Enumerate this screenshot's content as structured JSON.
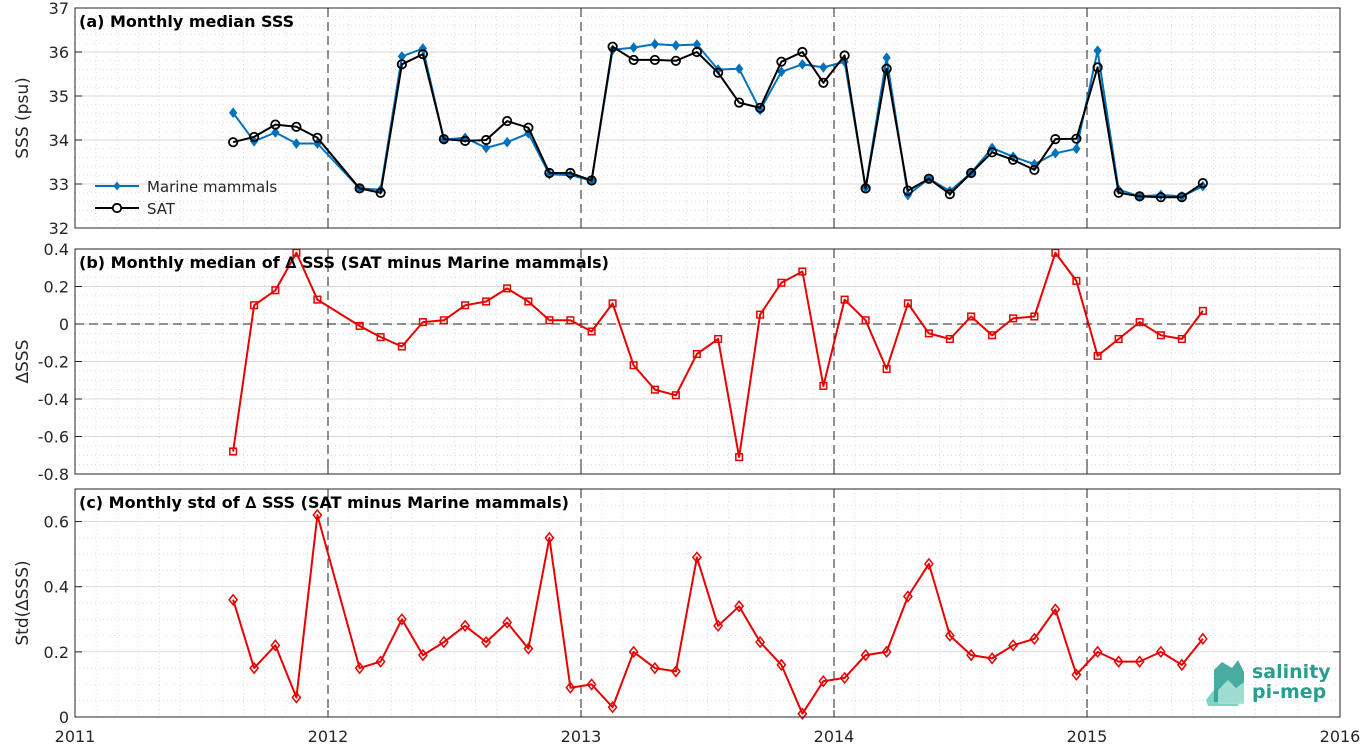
{
  "colors": {
    "marine": "#0072BD",
    "sat": "#000000",
    "delta": "#E80000",
    "logo": "#2a9d8f"
  },
  "logo": {
    "line1": "salinity",
    "line2": "pi-mep"
  },
  "chart_data": [
    {
      "type": "line",
      "title": "(a) Monthly median SSS",
      "ylabel": "SSS (psu)",
      "xlim": [
        2011,
        2016
      ],
      "ylim": [
        32,
        37
      ],
      "yticks": [
        32,
        33,
        34,
        35,
        36,
        37
      ],
      "grid": true,
      "legend_position": "bottom-left",
      "x": [
        2011.625,
        2011.708,
        2011.792,
        2011.875,
        2011.958,
        2012.125,
        2012.208,
        2012.292,
        2012.375,
        2012.458,
        2012.542,
        2012.625,
        2012.708,
        2012.792,
        2012.875,
        2012.958,
        2013.042,
        2013.125,
        2013.208,
        2013.292,
        2013.375,
        2013.458,
        2013.542,
        2013.625,
        2013.708,
        2013.792,
        2013.875,
        2013.958,
        2014.042,
        2014.125,
        2014.208,
        2014.292,
        2014.375,
        2014.458,
        2014.542,
        2014.625,
        2014.708,
        2014.792,
        2014.875,
        2014.958,
        2015.042,
        2015.125,
        2015.208,
        2015.292,
        2015.375,
        2015.458
      ],
      "series": [
        {
          "name": "Marine mammals",
          "marker": "diamond-filled",
          "values": [
            34.62,
            33.97,
            34.17,
            33.92,
            33.92,
            32.9,
            32.87,
            35.9,
            36.08,
            34.01,
            34.05,
            33.82,
            33.95,
            34.15,
            33.22,
            33.2,
            33.08,
            36.05,
            36.1,
            36.18,
            36.15,
            36.17,
            35.6,
            35.62,
            34.68,
            35.55,
            35.72,
            35.65,
            35.78,
            32.92,
            35.87,
            32.75,
            33.12,
            32.84,
            33.25,
            33.82,
            33.62,
            33.45,
            33.7,
            33.8,
            36.03,
            32.87,
            32.72,
            32.75,
            32.72,
            32.95
          ]
        },
        {
          "name": "SAT",
          "marker": "circle-open",
          "values": [
            33.95,
            34.07,
            34.35,
            34.3,
            34.05,
            32.9,
            32.8,
            35.72,
            35.95,
            34.02,
            33.98,
            34.0,
            34.43,
            34.28,
            33.25,
            33.25,
            33.08,
            36.12,
            35.82,
            35.82,
            35.8,
            36.0,
            35.53,
            34.85,
            34.73,
            35.78,
            36.0,
            35.3,
            35.92,
            32.9,
            35.62,
            32.85,
            33.12,
            32.77,
            33.25,
            33.72,
            33.55,
            33.32,
            34.02,
            34.03,
            35.65,
            32.8,
            32.72,
            32.7,
            32.7,
            33.02
          ]
        }
      ]
    },
    {
      "type": "line",
      "title": "(b) Monthly median of ∆ SSS (SAT minus Marine mammals)",
      "ylabel": "∆SSS",
      "xlim": [
        2011,
        2016
      ],
      "ylim": [
        -0.8,
        0.4
      ],
      "yticks": [
        -0.8,
        -0.6,
        -0.4,
        -0.2,
        0,
        0.2,
        0.4
      ],
      "grid": true,
      "zero_line": true,
      "x": [
        2011.625,
        2011.708,
        2011.792,
        2011.875,
        2011.958,
        2012.125,
        2012.208,
        2012.292,
        2012.375,
        2012.458,
        2012.542,
        2012.625,
        2012.708,
        2012.792,
        2012.875,
        2012.958,
        2013.042,
        2013.125,
        2013.208,
        2013.292,
        2013.375,
        2013.458,
        2013.542,
        2013.625,
        2013.708,
        2013.792,
        2013.875,
        2013.958,
        2014.042,
        2014.125,
        2014.208,
        2014.292,
        2014.375,
        2014.458,
        2014.542,
        2014.625,
        2014.708,
        2014.792,
        2014.875,
        2014.958,
        2015.042,
        2015.125,
        2015.208,
        2015.292,
        2015.375,
        2015.458
      ],
      "series": [
        {
          "marker": "square-open",
          "values": [
            -0.68,
            0.1,
            0.18,
            0.38,
            0.13,
            -0.01,
            -0.07,
            -0.12,
            0.01,
            0.02,
            0.1,
            0.12,
            0.19,
            0.12,
            0.02,
            0.02,
            -0.04,
            0.11,
            -0.22,
            -0.35,
            -0.38,
            -0.16,
            -0.08,
            -0.71,
            0.05,
            0.22,
            0.28,
            -0.33,
            0.13,
            0.02,
            -0.24,
            0.11,
            -0.05,
            -0.08,
            0.04,
            -0.06,
            0.03,
            0.04,
            0.38,
            0.23,
            -0.17,
            -0.08,
            0.01,
            -0.06,
            -0.08,
            0.07
          ]
        }
      ]
    },
    {
      "type": "line",
      "title": "(c) Monthly std of ∆ SSS (SAT minus Marine mammals)",
      "ylabel": "Std(∆SSS)",
      "xlim": [
        2011,
        2016
      ],
      "ylim": [
        0,
        0.7
      ],
      "yticks": [
        0,
        0.2,
        0.4,
        0.6
      ],
      "xticks": [
        2011,
        2012,
        2013,
        2014,
        2015,
        2016
      ],
      "grid": true,
      "x": [
        2011.625,
        2011.708,
        2011.792,
        2011.875,
        2011.958,
        2012.125,
        2012.208,
        2012.292,
        2012.375,
        2012.458,
        2012.542,
        2012.625,
        2012.708,
        2012.792,
        2012.875,
        2012.958,
        2013.042,
        2013.125,
        2013.208,
        2013.292,
        2013.375,
        2013.458,
        2013.542,
        2013.625,
        2013.708,
        2013.792,
        2013.875,
        2013.958,
        2014.042,
        2014.125,
        2014.208,
        2014.292,
        2014.375,
        2014.458,
        2014.542,
        2014.625,
        2014.708,
        2014.792,
        2014.875,
        2014.958,
        2015.042,
        2015.125,
        2015.208,
        2015.292,
        2015.375,
        2015.458
      ],
      "series": [
        {
          "marker": "diamond-open",
          "values": [
            0.36,
            0.15,
            0.22,
            0.06,
            0.62,
            0.15,
            0.17,
            0.3,
            0.19,
            0.23,
            0.28,
            0.23,
            0.29,
            0.21,
            0.55,
            0.09,
            0.1,
            0.03,
            0.2,
            0.15,
            0.14,
            0.49,
            0.28,
            0.34,
            0.23,
            0.16,
            0.01,
            0.11,
            0.12,
            0.19,
            0.2,
            0.37,
            0.47,
            0.25,
            0.19,
            0.18,
            0.22,
            0.24,
            0.33,
            0.13,
            0.2,
            0.17,
            0.17,
            0.2,
            0.16,
            0.24
          ]
        }
      ]
    }
  ]
}
